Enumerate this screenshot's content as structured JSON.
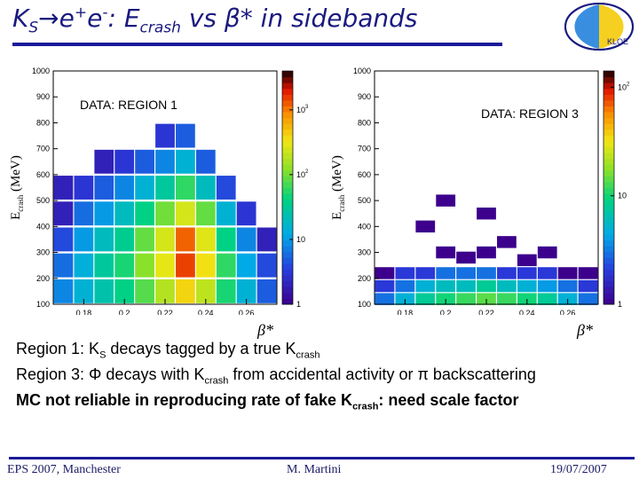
{
  "title": {
    "ks": "K",
    "ks_sub": "S",
    "arrow": "→",
    "e1": "e",
    "sup1": "+",
    "e2": "e",
    "sup2": "-",
    "colon": ": E",
    "crash_sub": "crash",
    "vs": " vs ",
    "beta": "β*",
    "rest": " in sidebands"
  },
  "logo": {
    "text": "KLOE",
    "colors": {
      "left": "#3a8ee0",
      "right": "#f5d020"
    }
  },
  "chart_data": [
    {
      "type": "heatmap",
      "annotation": "DATA: REGION 1",
      "ylabel": "E",
      "ylabel_sub": "crash",
      "ylabel_unit": " (MeV)",
      "xlabel": "β*",
      "xlim": [
        0.165,
        0.275
      ],
      "ylim": [
        100,
        1000
      ],
      "xticks": [
        "0.18",
        "0.2",
        "0.22",
        "0.24",
        "0.26"
      ],
      "xtick_values": [
        0.18,
        0.2,
        0.22,
        0.24,
        0.26
      ],
      "yticks": [
        "100",
        "200",
        "300",
        "400",
        "500",
        "600",
        "700",
        "800",
        "900",
        "1000"
      ],
      "ytick_values": [
        100,
        200,
        300,
        400,
        500,
        600,
        700,
        800,
        900,
        1000
      ],
      "colorbar_ticks": [
        "1",
        "10",
        "10",
        "10"
      ],
      "colorbar_exps": [
        "",
        "",
        "2",
        "3"
      ],
      "colorbar_log_values": [
        0,
        1,
        2,
        3
      ],
      "colorbar_range": [
        0,
        3.6
      ],
      "cells": [
        [
          0.17,
          150,
          8
        ],
        [
          0.17,
          250,
          6
        ],
        [
          0.17,
          350,
          4
        ],
        [
          0.17,
          450,
          2
        ],
        [
          0.17,
          550,
          2
        ],
        [
          0.18,
          150,
          15
        ],
        [
          0.18,
          250,
          14
        ],
        [
          0.18,
          350,
          10
        ],
        [
          0.18,
          450,
          6
        ],
        [
          0.18,
          550,
          3
        ],
        [
          0.19,
          150,
          25
        ],
        [
          0.19,
          250,
          30
        ],
        [
          0.19,
          350,
          20
        ],
        [
          0.19,
          450,
          10
        ],
        [
          0.19,
          550,
          5
        ],
        [
          0.19,
          650,
          2
        ],
        [
          0.2,
          150,
          40
        ],
        [
          0.2,
          250,
          50
        ],
        [
          0.2,
          350,
          35
        ],
        [
          0.2,
          450,
          20
        ],
        [
          0.2,
          550,
          8
        ],
        [
          0.2,
          650,
          3
        ],
        [
          0.21,
          150,
          80
        ],
        [
          0.21,
          250,
          120
        ],
        [
          0.21,
          350,
          90
        ],
        [
          0.21,
          450,
          40
        ],
        [
          0.21,
          550,
          15
        ],
        [
          0.21,
          650,
          5
        ],
        [
          0.22,
          150,
          180
        ],
        [
          0.22,
          250,
          300
        ],
        [
          0.22,
          350,
          250
        ],
        [
          0.22,
          450,
          100
        ],
        [
          0.22,
          550,
          30
        ],
        [
          0.22,
          650,
          8
        ],
        [
          0.22,
          750,
          3
        ],
        [
          0.23,
          150,
          400
        ],
        [
          0.23,
          250,
          1500
        ],
        [
          0.23,
          350,
          1200
        ],
        [
          0.23,
          450,
          250
        ],
        [
          0.23,
          550,
          60
        ],
        [
          0.23,
          650,
          15
        ],
        [
          0.23,
          750,
          5
        ],
        [
          0.24,
          150,
          200
        ],
        [
          0.24,
          250,
          350
        ],
        [
          0.24,
          350,
          280
        ],
        [
          0.24,
          450,
          90
        ],
        [
          0.24,
          550,
          20
        ],
        [
          0.24,
          650,
          5
        ],
        [
          0.25,
          150,
          50
        ],
        [
          0.25,
          250,
          60
        ],
        [
          0.25,
          350,
          40
        ],
        [
          0.25,
          450,
          15
        ],
        [
          0.25,
          550,
          4
        ],
        [
          0.26,
          150,
          15
        ],
        [
          0.26,
          250,
          12
        ],
        [
          0.26,
          350,
          8
        ],
        [
          0.26,
          450,
          3
        ],
        [
          0.27,
          150,
          5
        ],
        [
          0.27,
          250,
          4
        ],
        [
          0.27,
          350,
          2
        ]
      ]
    },
    {
      "type": "heatmap",
      "annotation": "DATA: REGION 3",
      "ylabel": "E",
      "ylabel_sub": "crash",
      "ylabel_unit": " (MeV)",
      "xlabel": "β*",
      "xlim": [
        0.165,
        0.275
      ],
      "ylim": [
        100,
        1000
      ],
      "xticks": [
        "0.18",
        "0.2",
        "0.22",
        "0.24",
        "0.26"
      ],
      "xtick_values": [
        0.18,
        0.2,
        0.22,
        0.24,
        0.26
      ],
      "yticks": [
        "100",
        "200",
        "300",
        "400",
        "500",
        "600",
        "700",
        "800",
        "900",
        "1000"
      ],
      "ytick_values": [
        100,
        200,
        300,
        400,
        500,
        600,
        700,
        800,
        900,
        1000
      ],
      "colorbar_ticks": [
        "1",
        "10",
        "10"
      ],
      "colorbar_exps": [
        "",
        "",
        "2"
      ],
      "colorbar_log_values": [
        0,
        1,
        2
      ],
      "colorbar_range": [
        0,
        2.15
      ],
      "cells": [
        [
          0.17,
          120,
          3
        ],
        [
          0.17,
          170,
          2
        ],
        [
          0.17,
          220,
          1
        ],
        [
          0.18,
          120,
          5
        ],
        [
          0.18,
          170,
          3
        ],
        [
          0.18,
          220,
          2
        ],
        [
          0.19,
          120,
          8
        ],
        [
          0.19,
          170,
          5
        ],
        [
          0.19,
          220,
          2
        ],
        [
          0.19,
          400,
          1
        ],
        [
          0.2,
          120,
          10
        ],
        [
          0.2,
          170,
          6
        ],
        [
          0.2,
          220,
          3
        ],
        [
          0.2,
          300,
          1
        ],
        [
          0.2,
          500,
          1
        ],
        [
          0.21,
          120,
          12
        ],
        [
          0.21,
          170,
          6
        ],
        [
          0.21,
          220,
          3
        ],
        [
          0.21,
          280,
          1
        ],
        [
          0.22,
          120,
          14
        ],
        [
          0.22,
          170,
          8
        ],
        [
          0.22,
          220,
          3
        ],
        [
          0.22,
          300,
          1
        ],
        [
          0.22,
          450,
          1
        ],
        [
          0.23,
          120,
          12
        ],
        [
          0.23,
          170,
          6
        ],
        [
          0.23,
          220,
          2
        ],
        [
          0.23,
          340,
          1
        ],
        [
          0.24,
          120,
          10
        ],
        [
          0.24,
          170,
          5
        ],
        [
          0.24,
          220,
          2
        ],
        [
          0.24,
          270,
          1
        ],
        [
          0.25,
          120,
          8
        ],
        [
          0.25,
          170,
          4
        ],
        [
          0.25,
          220,
          2
        ],
        [
          0.25,
          300,
          1
        ],
        [
          0.26,
          120,
          5
        ],
        [
          0.26,
          170,
          3
        ],
        [
          0.26,
          220,
          1
        ],
        [
          0.27,
          120,
          3
        ],
        [
          0.27,
          170,
          2
        ],
        [
          0.27,
          220,
          1
        ]
      ]
    }
  ],
  "notes": {
    "line1_a": "Region 1: K",
    "line1_sub1": "S",
    "line1_b": " decays tagged by a true K",
    "line1_sub2": "crash",
    "line2_a": "Region 3: Φ decays with K",
    "line2_sub": "crash",
    "line2_b": " from accidental activity or π backscattering",
    "line3_a": "MC not reliable in reproducing rate of fake K",
    "line3_sub": "crash",
    "line3_b": ": need scale factor"
  },
  "footer": {
    "left": "EPS 2007, Manchester",
    "center": "M. Martini",
    "right": "19/07/2007"
  }
}
